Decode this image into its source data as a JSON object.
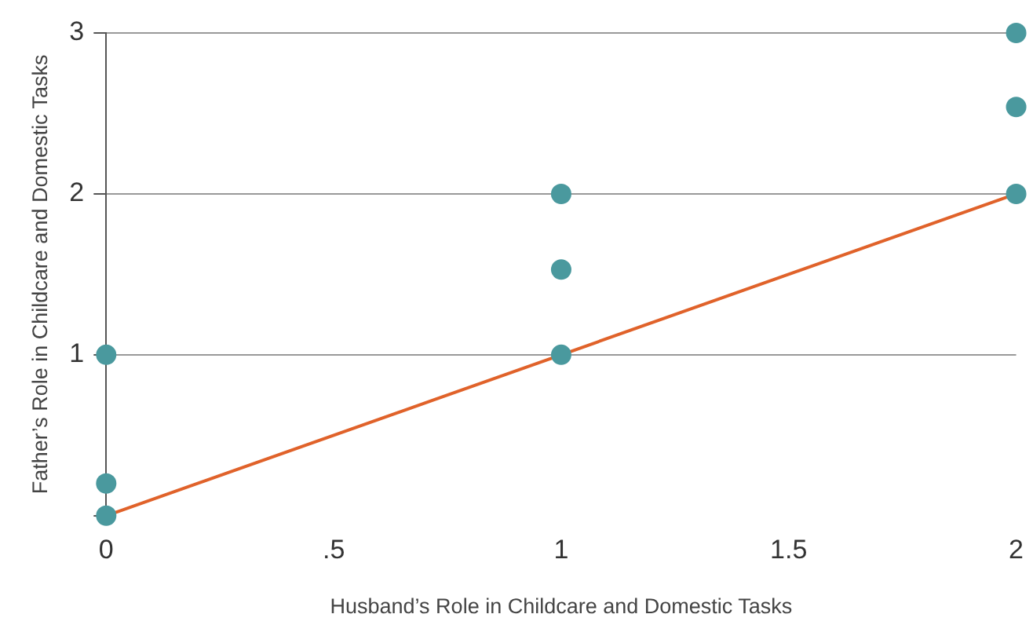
{
  "chart_data": {
    "type": "scatter",
    "xlabel": "Husband’s Role in Childcare and Domestic Tasks",
    "ylabel": "Father’s Role in Childcare and Domestic Tasks",
    "xlim": [
      0,
      2
    ],
    "ylim": [
      0,
      3
    ],
    "xticks": [
      0,
      {
        "value": 0.5,
        "label": ".5"
      },
      1,
      1.5,
      2
    ],
    "yticks": [
      {
        "value": 0,
        "label": null
      },
      1,
      2,
      3
    ],
    "grid": "y",
    "legend": false,
    "marker": "circle",
    "series": [
      {
        "type": "scatter",
        "color": "#4a999e",
        "x": [
          0,
          0,
          0,
          1,
          1,
          1,
          2,
          2,
          2
        ],
        "values": [
          0,
          0.2,
          1,
          1,
          1.53,
          2,
          2,
          2.54,
          3
        ]
      },
      {
        "type": "line",
        "color": "#e0622a",
        "x": [
          0,
          2
        ],
        "values": [
          0,
          2
        ],
        "marker": "none",
        "line_style": "solid"
      }
    ]
  }
}
